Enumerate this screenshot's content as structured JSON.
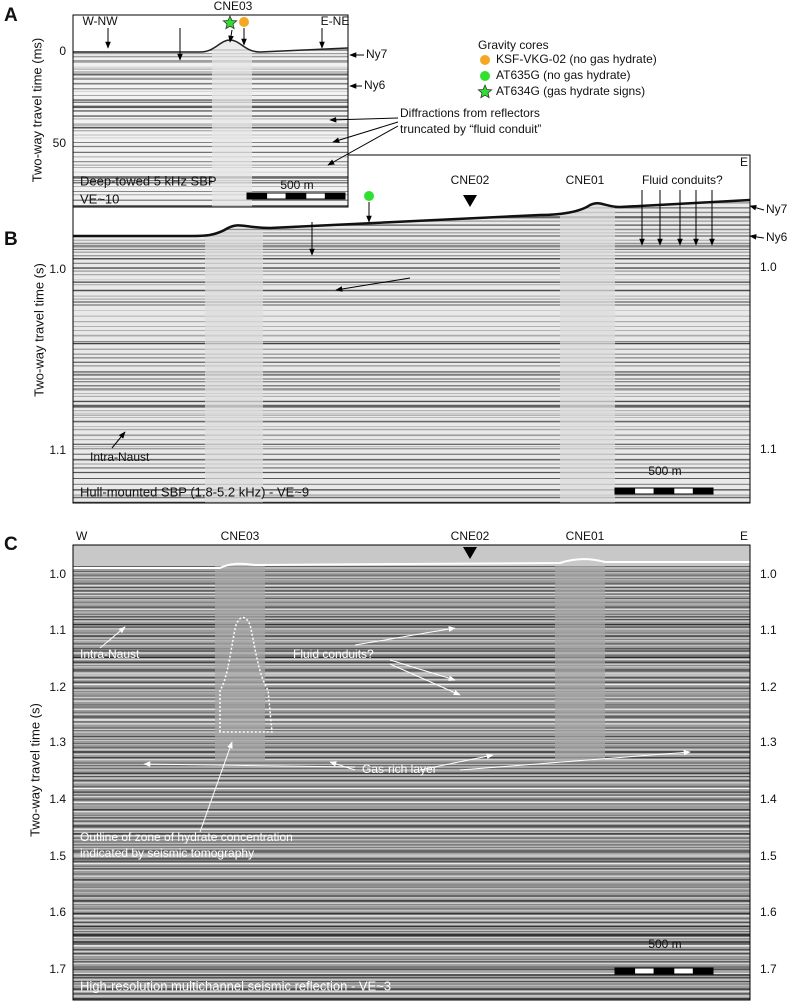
{
  "panel_a": {
    "label": "A",
    "y_axis_title": "Two-way travel time (ms)",
    "yticks": [
      "0",
      "50"
    ],
    "west": "W-NW",
    "site": "CNE03",
    "east": "E-NE",
    "ny7": "Ny7",
    "ny6": "Ny6",
    "caption": [
      "Deep-towed 5 kHz SBP",
      "VE~10"
    ],
    "scale": "500 m"
  },
  "legend": {
    "title": "Gravity cores",
    "items": [
      {
        "label": "KSF-VKG-02 (no gas hydrate)",
        "color": "#f5a623",
        "symbol": "circle"
      },
      {
        "label": "AT635G (no gas hydrate)",
        "color": "#2fe02f",
        "symbol": "circle"
      },
      {
        "label": "AT634G (gas hydrate signs)",
        "color": "#2fe02f",
        "symbol": "star"
      }
    ]
  },
  "diffraction_note": [
    "Diffractions from reflectors",
    "truncated by “fluid conduit”"
  ],
  "panel_b": {
    "label": "B",
    "y_axis_title": "Two-way travel time (s)",
    "yticks": [
      "1.0",
      "1.1"
    ],
    "east": "E",
    "sites": [
      "CNE02",
      "CNE01"
    ],
    "conduits": "Fluid conduits?",
    "ny7": "Ny7",
    "ny6": "Ny6",
    "intra": "Intra-Naust",
    "caption": "Hull-mounted SBP (1.8-5.2 kHz) - VE~9",
    "scale": "500 m"
  },
  "panel_c": {
    "label": "C",
    "y_axis_title": "Two-way travel time (s)",
    "yticks": [
      "1.0",
      "1.1",
      "1.2",
      "1.3",
      "1.4",
      "1.5",
      "1.6",
      "1.7"
    ],
    "west": "W",
    "east": "E",
    "sites": [
      "CNE03",
      "CNE02",
      "CNE01"
    ],
    "intra": "Intra-Naust",
    "conduits": "Fluid conduits?",
    "gas": "Gas-rich layer",
    "outline": [
      "Outline of zone of hydrate concentration",
      "indicated by seismic tomography"
    ],
    "caption": "High-resolution multichannel seismic reflection - VE~3",
    "scale": "500 m"
  }
}
